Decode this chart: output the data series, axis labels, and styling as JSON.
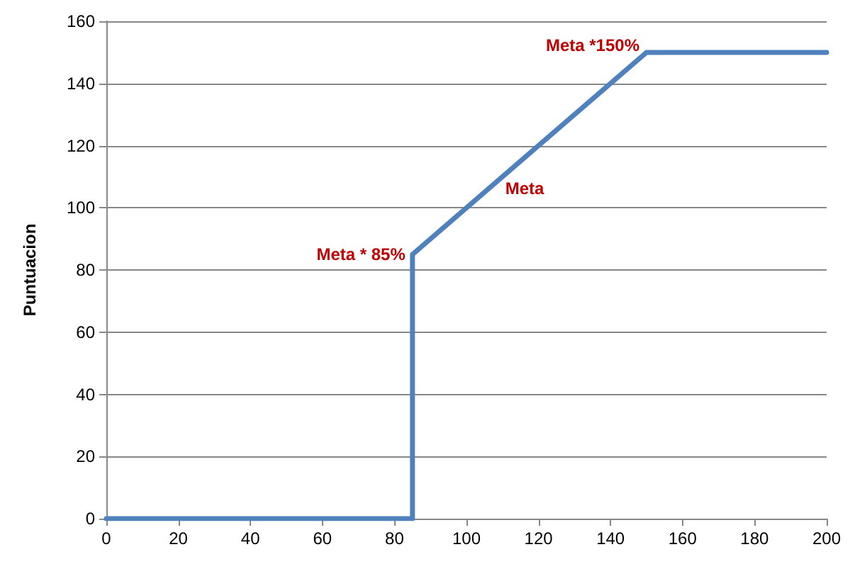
{
  "chart_data": {
    "type": "line",
    "ylabel": "Puntuacion",
    "x": [
      0,
      85,
      85,
      150,
      200
    ],
    "series": [
      {
        "color": "#4f81bd",
        "values": [
          0,
          0,
          85,
          150,
          150
        ]
      }
    ],
    "xlim": [
      0,
      200
    ],
    "xticks": [
      0,
      20,
      40,
      60,
      80,
      100,
      120,
      140,
      160,
      180,
      200
    ],
    "ylim": [
      0,
      160
    ],
    "yticks": [
      0,
      20,
      40,
      60,
      80,
      100,
      120,
      140,
      160
    ],
    "grid": "y",
    "marker": "none",
    "line_style": "solid",
    "annotations": [
      {
        "text": "Meta * 85%",
        "x": 85,
        "y": 85
      },
      {
        "text": "Meta",
        "x": 113,
        "y": 113
      },
      {
        "text": "Meta *150%",
        "x": 150,
        "y": 150
      }
    ]
  }
}
